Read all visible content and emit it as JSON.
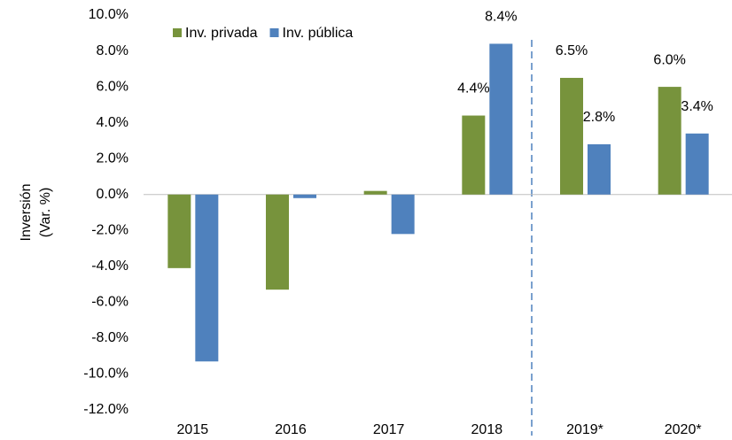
{
  "chart_data": {
    "type": "bar",
    "y_label": [
      "Inversión",
      "(Var. %)"
    ],
    "categories": [
      "2015",
      "2016",
      "2017",
      "2018",
      "2019*",
      "2020*"
    ],
    "series": [
      {
        "name": "Inv. privada",
        "color": "#77933c",
        "values": [
          -4.1,
          -5.3,
          0.2,
          4.4,
          6.5,
          6.0
        ],
        "value_labels": [
          null,
          null,
          null,
          "4.4%",
          "6.5%",
          "6.0%"
        ]
      },
      {
        "name": "Inv. pública",
        "color": "#4f81bd",
        "values": [
          -9.3,
          -0.2,
          -2.2,
          8.4,
          2.8,
          3.4
        ],
        "value_labels": [
          null,
          null,
          null,
          "8.4%",
          "2.8%",
          "3.4%"
        ]
      }
    ],
    "ylim": [
      -12,
      10
    ],
    "yticks": [
      {
        "value": -12,
        "label": "-12.0%"
      },
      {
        "value": -10,
        "label": "-10.0%"
      },
      {
        "value": -8,
        "label": "-8.0%"
      },
      {
        "value": -6,
        "label": "-6.0%"
      },
      {
        "value": -4,
        "label": "-4.0%"
      },
      {
        "value": -2,
        "label": "-2.0%"
      },
      {
        "value": 0,
        "label": "0.0%"
      },
      {
        "value": 2,
        "label": "2.0%"
      },
      {
        "value": 4,
        "label": "4.0%"
      },
      {
        "value": 6,
        "label": "6.0%"
      },
      {
        "value": 8,
        "label": "8.0%"
      },
      {
        "value": 10,
        "label": "10.0%"
      }
    ],
    "legend": "top",
    "grid": false
  }
}
